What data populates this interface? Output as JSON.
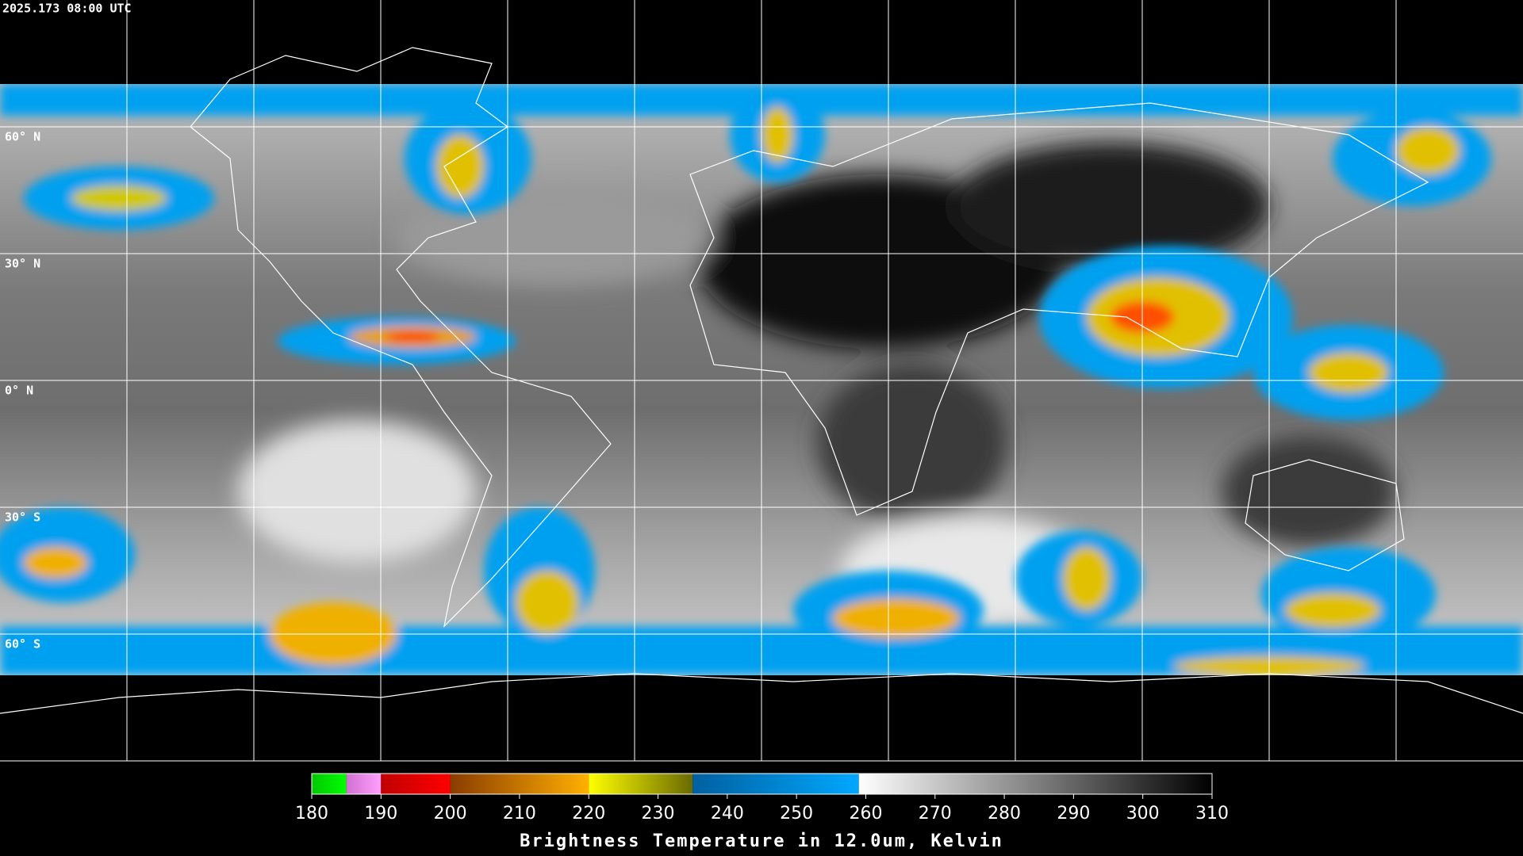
{
  "header": {
    "title": "2025.173 08:00 UTC"
  },
  "map": {
    "grid": true,
    "latitudes": [
      {
        "value": 60,
        "label": "60° N"
      },
      {
        "value": 30,
        "label": "30° N"
      },
      {
        "value": 0,
        "label": "0° N"
      },
      {
        "value": -30,
        "label": "30° S"
      },
      {
        "value": -60,
        "label": "60° S"
      }
    ]
  },
  "colorbar": {
    "label": "Brightness Temperature in 12.0um, Kelvin",
    "range": [
      180,
      310
    ],
    "ticks": [
      180,
      190,
      200,
      210,
      220,
      230,
      240,
      250,
      260,
      270,
      280,
      290,
      300,
      310
    ],
    "segments": [
      {
        "range": [
          180,
          185
        ],
        "colors": [
          "#00c800",
          "#00ff00"
        ]
      },
      {
        "range": [
          185,
          190
        ],
        "colors": [
          "#d070d0",
          "#ffa0ff"
        ]
      },
      {
        "range": [
          190,
          200
        ],
        "colors": [
          "#c00000",
          "#ff0000"
        ]
      },
      {
        "range": [
          200,
          220
        ],
        "colors": [
          "#8a3c00",
          "#ffb000"
        ]
      },
      {
        "range": [
          220,
          235
        ],
        "colors": [
          "#ffff00",
          "#6a6a00"
        ]
      },
      {
        "range": [
          235,
          259
        ],
        "colors": [
          "#0060a0",
          "#00a8ff"
        ]
      },
      {
        "range": [
          259,
          310
        ],
        "colors": [
          "#ffffff",
          "#000000"
        ]
      }
    ]
  }
}
